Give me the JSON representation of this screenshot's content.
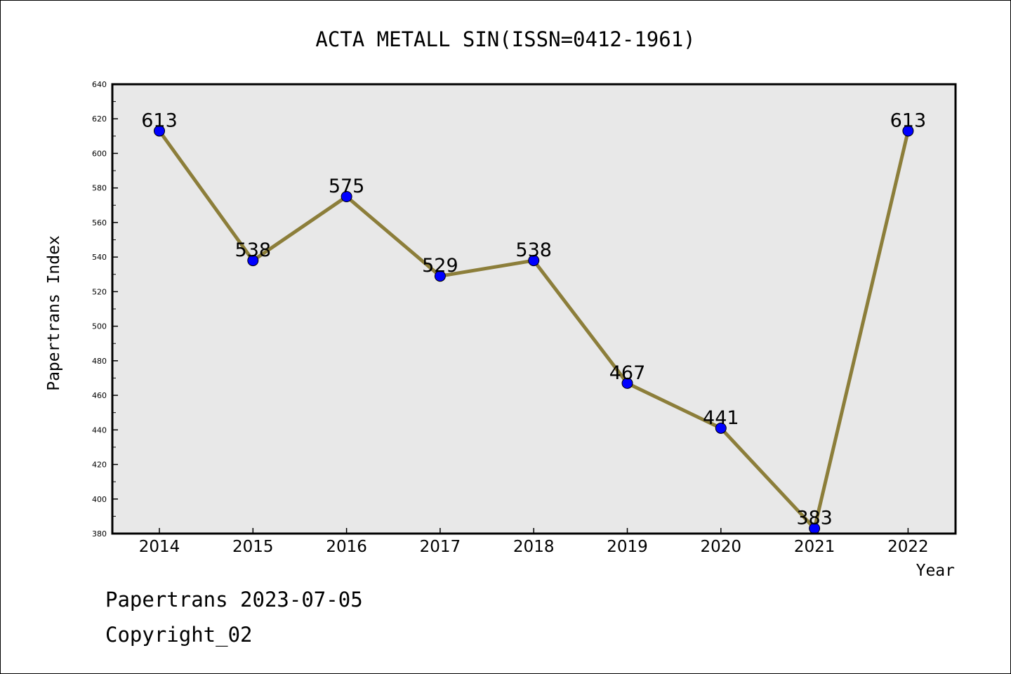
{
  "chart_data": {
    "type": "line",
    "title": "ACTA METALL SIN(ISSN=0412-1961)",
    "xlabel": "Year",
    "ylabel": "Papertrans Index",
    "categories": [
      "2014",
      "2015",
      "2016",
      "2017",
      "2018",
      "2019",
      "2020",
      "2021",
      "2022"
    ],
    "values": [
      613,
      538,
      575,
      529,
      538,
      467,
      441,
      383,
      613
    ],
    "data_labels": [
      "613",
      "538",
      "575",
      "529",
      "538",
      "467",
      "441",
      "383",
      "613"
    ],
    "ylim": [
      380,
      640
    ],
    "yticks": [
      380,
      400,
      420,
      440,
      460,
      480,
      500,
      520,
      540,
      560,
      580,
      600,
      620,
      640
    ],
    "ytick_labels": [
      "380",
      "400",
      "420",
      "440",
      "460",
      "480",
      "500",
      "520",
      "540",
      "560",
      "580",
      "600",
      "620",
      "640"
    ],
    "grid": false,
    "legend": "none",
    "colors": {
      "line": "#8c7e3a",
      "marker": "#0000ff",
      "plot_background": "#e8e8e8"
    }
  },
  "footer": {
    "line1": "Papertrans 2023-07-05",
    "line2": "Copyright_02"
  }
}
